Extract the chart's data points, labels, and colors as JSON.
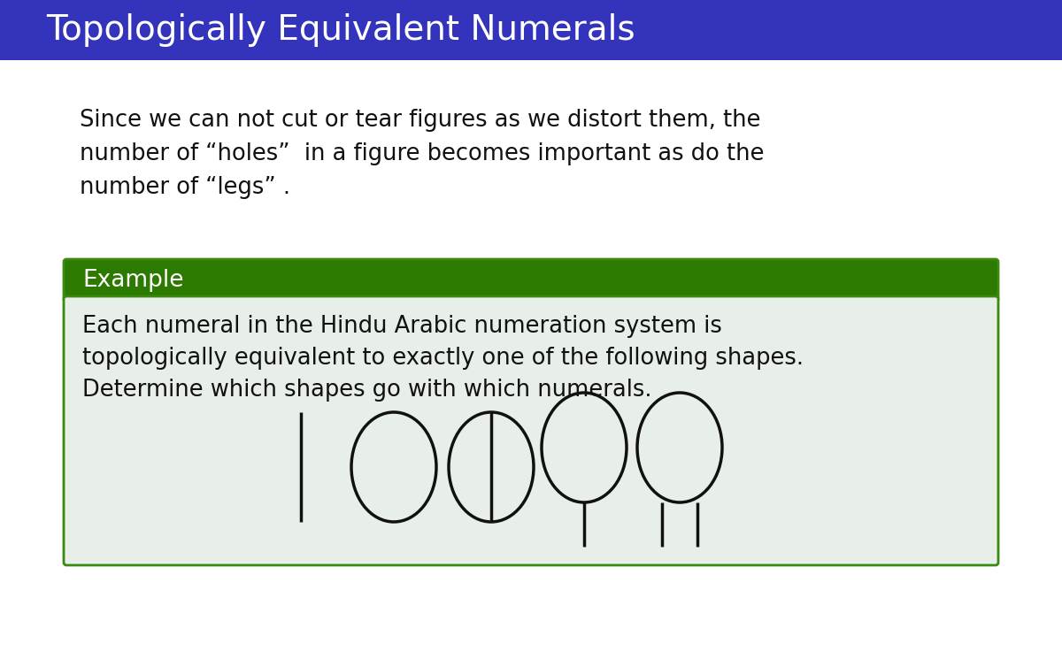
{
  "title": "Topologically Equivalent Numerals",
  "title_bg": "#3333BB",
  "title_fg": "#FFFFFF",
  "body_bg": "#FFFFFF",
  "text1_line1": "Since we can not cut or tear figures as we distort them, the",
  "text1_line2": "number of “holes”  in a figure becomes important as do the",
  "text1_line3": "number of “legs” .",
  "example_label": "Example",
  "example_label_bg": "#2D7A00",
  "example_label_fg": "#FFFFFF",
  "example_box_bg": "#E8EEE8",
  "example_box_border": "#3A8A10",
  "example_text_line1": "Each numeral in the Hindu Arabic numeration system is",
  "example_text_line2": "topologically equivalent to exactly one of the following shapes.",
  "example_text_line3": "Determine which shapes go with which numerals.",
  "text_color": "#111111",
  "shape_color": "#111111",
  "shape_lw": 2.5,
  "font_family": "DejaVu Sans"
}
